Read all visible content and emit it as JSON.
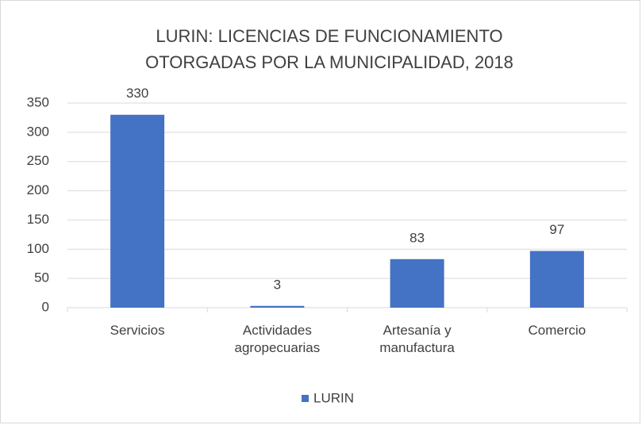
{
  "chart_data": {
    "type": "bar",
    "title": [
      "LURIN: LICENCIAS DE FUNCIONAMIENTO",
      "OTORGADAS POR LA MUNICIPALIDAD, 2018"
    ],
    "categories": [
      "Servicios",
      "Actividades agropecuarias",
      "Artesanía y manufactura",
      "Comercio"
    ],
    "series": [
      {
        "name": "LURIN",
        "color": "#4472c4",
        "values": [
          330,
          3,
          83,
          97
        ]
      }
    ],
    "ylim": [
      0,
      350
    ],
    "yticks": [
      0,
      50,
      100,
      150,
      200,
      250,
      300,
      350
    ],
    "grid": true,
    "legend": "bottom"
  }
}
